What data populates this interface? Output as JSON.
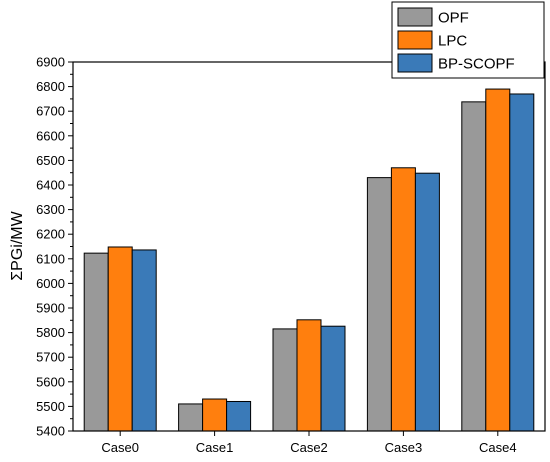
{
  "chart_data": {
    "type": "bar",
    "categories": [
      "Case0",
      "Case1",
      "Case2",
      "Case3",
      "Case4"
    ],
    "series": [
      {
        "name": "OPF",
        "color": "#999999",
        "values": [
          6123,
          5510,
          5815,
          6430,
          6738
        ]
      },
      {
        "name": "LPC",
        "color": "#ff7f0e",
        "values": [
          6148,
          5530,
          5852,
          6470,
          6790
        ]
      },
      {
        "name": "BP-SCOPF",
        "color": "#3a7ab8",
        "values": [
          6136,
          5520,
          5826,
          6448,
          6770
        ]
      }
    ],
    "ylabel": "ΣPGi/MW",
    "ylim": [
      5400,
      6900
    ],
    "yticks": [
      "5400",
      "5500",
      "5600",
      "5700",
      "5800",
      "5900",
      "6000",
      "6100",
      "6200",
      "6300",
      "6400",
      "6500",
      "6600",
      "6700",
      "6800",
      "6900"
    ],
    "grid": false,
    "legend_position": "top-right"
  }
}
